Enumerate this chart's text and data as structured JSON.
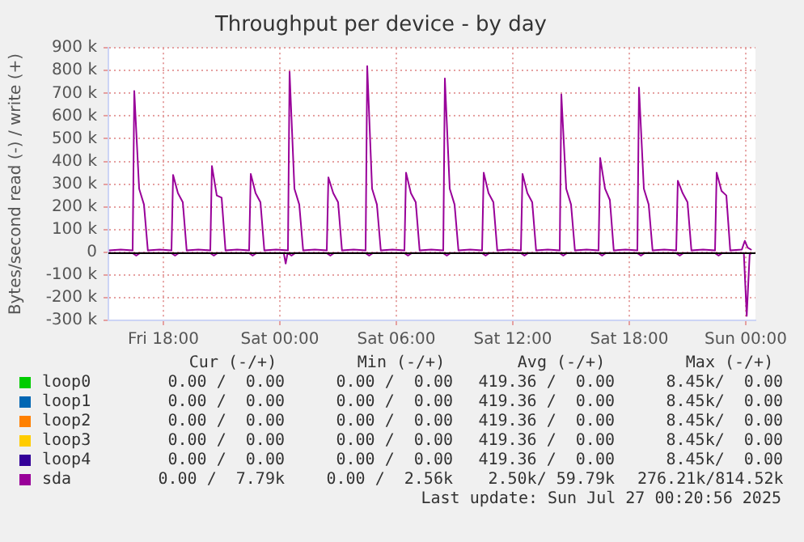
{
  "chart_data": {
    "type": "line",
    "title": "Throughput per device - by day",
    "ylabel": "Bytes/second read (-) / write (+)",
    "xlim": [
      "2025-07-25T15:10",
      "2025-07-27T00:30"
    ],
    "xticks": [
      {
        "value": "2025-07-25T18:00",
        "label": "Fri 18:00"
      },
      {
        "value": "2025-07-26T00:00",
        "label": "Sat 00:00"
      },
      {
        "value": "2025-07-26T06:00",
        "label": "Sat 06:00"
      },
      {
        "value": "2025-07-26T12:00",
        "label": "Sat 12:00"
      },
      {
        "value": "2025-07-26T18:00",
        "label": "Sat 18:00"
      },
      {
        "value": "2025-07-27T00:00",
        "label": "Sun 00:00"
      }
    ],
    "ylim": [
      -300000,
      900000
    ],
    "yticks": [
      {
        "value": -300000,
        "label": "-300 k"
      },
      {
        "value": -200000,
        "label": "-200 k"
      },
      {
        "value": -100000,
        "label": "-100 k"
      },
      {
        "value": 0,
        "label": "0"
      },
      {
        "value": 100000,
        "label": "100 k"
      },
      {
        "value": 200000,
        "label": "200 k"
      },
      {
        "value": 300000,
        "label": "300 k"
      },
      {
        "value": 400000,
        "label": "400 k"
      },
      {
        "value": 500000,
        "label": "500 k"
      },
      {
        "value": 600000,
        "label": "600 k"
      },
      {
        "value": 700000,
        "label": "700 k"
      },
      {
        "value": 800000,
        "label": "800 k"
      },
      {
        "value": 900000,
        "label": "900 k"
      }
    ],
    "grid": true,
    "legend": "bottom",
    "marker": "none",
    "line_style": "solid",
    "ref_lines": [
      {
        "axis": "y",
        "value": 0,
        "color": "#000000"
      }
    ],
    "series": [
      {
        "name": "loop0",
        "color": "#00cc00"
      },
      {
        "name": "loop1",
        "color": "#0066b3"
      },
      {
        "name": "loop2",
        "color": "#ff8000"
      },
      {
        "name": "loop3",
        "color": "#ffcc00"
      },
      {
        "name": "loop4",
        "color": "#330099"
      },
      {
        "name": "sda",
        "color": "#990099",
        "x": [
          "2025-07-25T15:12",
          "2025-07-25T15:48",
          "2025-07-25T16:25",
          "2025-07-25T16:30",
          "2025-07-25T16:45",
          "2025-07-25T17:00",
          "2025-07-25T17:12",
          "2025-07-25T17:48",
          "2025-07-25T18:25",
          "2025-07-25T18:30",
          "2025-07-25T18:45",
          "2025-07-25T19:00",
          "2025-07-25T19:12",
          "2025-07-25T19:48",
          "2025-07-25T20:25",
          "2025-07-25T20:30",
          "2025-07-25T20:45",
          "2025-07-25T21:00",
          "2025-07-25T21:12",
          "2025-07-25T21:48",
          "2025-07-25T22:25",
          "2025-07-25T22:30",
          "2025-07-25T22:45",
          "2025-07-25T23:00",
          "2025-07-25T23:12",
          "2025-07-25T23:48",
          "2025-07-26T00:25",
          "2025-07-26T00:30",
          "2025-07-26T00:45",
          "2025-07-26T01:00",
          "2025-07-26T01:12",
          "2025-07-26T01:48",
          "2025-07-26T02:25",
          "2025-07-26T02:30",
          "2025-07-26T02:45",
          "2025-07-26T03:00",
          "2025-07-26T03:12",
          "2025-07-26T03:48",
          "2025-07-26T04:25",
          "2025-07-26T04:30",
          "2025-07-26T04:45",
          "2025-07-26T05:00",
          "2025-07-26T05:12",
          "2025-07-26T05:48",
          "2025-07-26T06:25",
          "2025-07-26T06:30",
          "2025-07-26T06:45",
          "2025-07-26T07:00",
          "2025-07-26T07:12",
          "2025-07-26T07:48",
          "2025-07-26T08:25",
          "2025-07-26T08:30",
          "2025-07-26T08:45",
          "2025-07-26T09:00",
          "2025-07-26T09:12",
          "2025-07-26T09:48",
          "2025-07-26T10:25",
          "2025-07-26T10:30",
          "2025-07-26T10:45",
          "2025-07-26T11:00",
          "2025-07-26T11:12",
          "2025-07-26T11:48",
          "2025-07-26T12:25",
          "2025-07-26T12:30",
          "2025-07-26T12:45",
          "2025-07-26T13:00",
          "2025-07-26T13:12",
          "2025-07-26T13:48",
          "2025-07-26T14:25",
          "2025-07-26T14:30",
          "2025-07-26T14:45",
          "2025-07-26T15:00",
          "2025-07-26T15:12",
          "2025-07-26T15:48",
          "2025-07-26T16:25",
          "2025-07-26T16:30",
          "2025-07-26T16:45",
          "2025-07-26T17:00",
          "2025-07-26T17:12",
          "2025-07-26T17:48",
          "2025-07-26T18:25",
          "2025-07-26T18:30",
          "2025-07-26T18:45",
          "2025-07-26T19:00",
          "2025-07-26T19:12",
          "2025-07-26T19:48",
          "2025-07-26T20:25",
          "2025-07-26T20:30",
          "2025-07-26T20:45",
          "2025-07-26T21:00",
          "2025-07-26T21:12",
          "2025-07-26T21:48",
          "2025-07-26T22:25",
          "2025-07-26T22:30",
          "2025-07-26T22:45",
          "2025-07-26T23:00",
          "2025-07-26T23:12",
          "2025-07-26T23:48",
          "2025-07-26T23:57",
          "2025-07-27T00:06",
          "2025-07-27T00:18"
        ],
        "values": [
          8000,
          12000,
          8000,
          710000,
          280000,
          210000,
          8000,
          12000,
          8000,
          340000,
          260000,
          220000,
          8000,
          12000,
          8000,
          380000,
          250000,
          240000,
          8000,
          12000,
          8000,
          345000,
          260000,
          220000,
          8000,
          12000,
          8000,
          795000,
          280000,
          210000,
          8000,
          12000,
          8000,
          330000,
          260000,
          220000,
          8000,
          12000,
          8000,
          820000,
          280000,
          210000,
          8000,
          12000,
          8000,
          350000,
          260000,
          220000,
          8000,
          12000,
          8000,
          765000,
          280000,
          210000,
          8000,
          12000,
          8000,
          350000,
          260000,
          220000,
          8000,
          12000,
          8000,
          345000,
          260000,
          220000,
          8000,
          12000,
          8000,
          695000,
          280000,
          210000,
          8000,
          12000,
          8000,
          415000,
          280000,
          230000,
          8000,
          12000,
          8000,
          725000,
          280000,
          210000,
          8000,
          12000,
          8000,
          315000,
          260000,
          220000,
          8000,
          12000,
          8000,
          350000,
          270000,
          250000,
          8000,
          12000,
          50000,
          20000,
          10000
        ]
      },
      {
        "color": "#990099",
        "x": [
          "2025-07-25T15:12",
          "2025-07-25T16:24",
          "2025-07-25T16:36",
          "2025-07-25T16:48",
          "2025-07-25T18:24",
          "2025-07-25T18:36",
          "2025-07-25T18:48",
          "2025-07-25T20:24",
          "2025-07-25T20:36",
          "2025-07-25T20:48",
          "2025-07-25T22:24",
          "2025-07-25T22:36",
          "2025-07-25T22:48",
          "2025-07-26T00:12",
          "2025-07-26T00:18",
          "2025-07-26T00:24",
          "2025-07-26T00:36",
          "2025-07-26T00:48",
          "2025-07-26T02:24",
          "2025-07-26T02:36",
          "2025-07-26T02:48",
          "2025-07-26T04:24",
          "2025-07-26T04:36",
          "2025-07-26T04:48",
          "2025-07-26T06:24",
          "2025-07-26T06:36",
          "2025-07-26T06:48",
          "2025-07-26T08:24",
          "2025-07-26T08:36",
          "2025-07-26T08:48",
          "2025-07-26T10:24",
          "2025-07-26T10:36",
          "2025-07-26T10:48",
          "2025-07-26T12:24",
          "2025-07-26T12:36",
          "2025-07-26T12:48",
          "2025-07-26T14:24",
          "2025-07-26T14:36",
          "2025-07-26T14:48",
          "2025-07-26T16:24",
          "2025-07-26T16:36",
          "2025-07-26T16:48",
          "2025-07-26T18:24",
          "2025-07-26T18:36",
          "2025-07-26T18:48",
          "2025-07-26T20:24",
          "2025-07-26T20:36",
          "2025-07-26T20:48",
          "2025-07-26T22:24",
          "2025-07-26T22:36",
          "2025-07-26T22:48",
          "2025-07-26T23:54",
          "2025-07-27T00:03",
          "2025-07-27T00:12",
          "2025-07-27T00:18"
        ],
        "values": [
          -3000,
          -3000,
          -15000,
          -3000,
          -3000,
          -15000,
          -3000,
          -3000,
          -15000,
          -3000,
          -3000,
          -15000,
          -3000,
          -3000,
          -50000,
          -3000,
          -15000,
          -3000,
          -3000,
          -15000,
          -3000,
          -3000,
          -15000,
          -3000,
          -3000,
          -15000,
          -3000,
          -3000,
          -15000,
          -3000,
          -3000,
          -15000,
          -3000,
          -3000,
          -15000,
          -3000,
          -3000,
          -15000,
          -3000,
          -3000,
          -15000,
          -3000,
          -3000,
          -15000,
          -3000,
          -3000,
          -15000,
          -3000,
          -3000,
          -15000,
          -3000,
          -3000,
          -280000,
          -10000,
          -3000
        ]
      }
    ],
    "annotations": [
      "Cur (-/+)",
      "Min (-/+)",
      "Avg (-/+)",
      "Max (-/+)",
      "0.00 /  0.00",
      "0.00 /  0.00",
      "419.36 /  0.00",
      "8.45k/  0.00",
      "0.00 /  0.00",
      "0.00 /  0.00",
      "419.36 /  0.00",
      "8.45k/  0.00",
      "0.00 /  0.00",
      "0.00 /  0.00",
      "419.36 /  0.00",
      "8.45k/  0.00",
      "0.00 /  0.00",
      "0.00 /  0.00",
      "419.36 /  0.00",
      "8.45k/  0.00",
      "0.00 /  0.00",
      "0.00 /  0.00",
      "419.36 /  0.00",
      "8.45k/  0.00",
      "0.00 /  7.79k",
      "0.00 /  2.56k",
      "2.50k/ 59.79k",
      "276.21k/814.52k",
      "Last update: Sun Jul 27 00:20:56 2025"
    ]
  }
}
